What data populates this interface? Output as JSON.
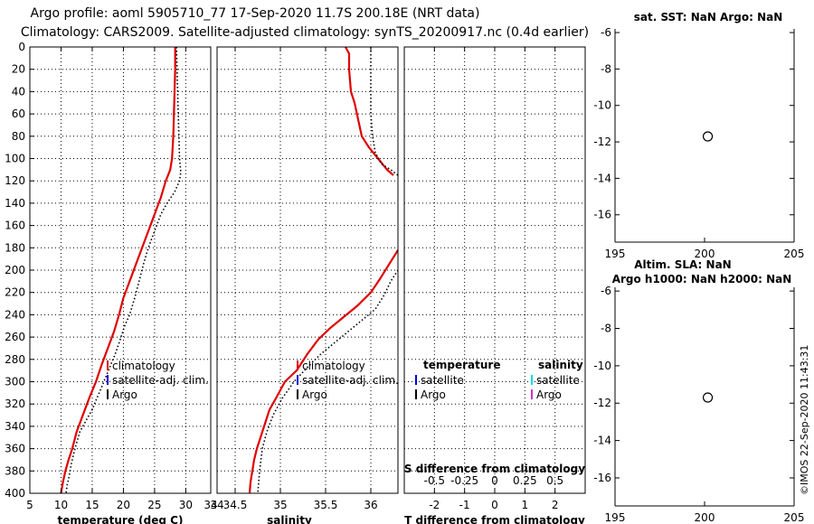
{
  "title_line1": "Argo profile: aoml 5905710_77 17-Sep-2020 11.7S 200.18E (NRT data)",
  "title_line2": "Climatology: CARS2009. Satellite-adjusted climatology: synTS_20200917.nc (0.4d earlier)",
  "credit": "©IMOS 22-Sep-2020 11:43:31",
  "colors": {
    "climatology": "#e00000",
    "satellite_adj": "#0000dd",
    "argo": "#000000",
    "satellite_salinity": "#00dddd",
    "argo_salinity": "#cc33cc"
  },
  "chart_data": [
    {
      "type": "line",
      "id": "temperature",
      "xlabel": "temperature (deg C)",
      "ylim": [
        400,
        0
      ],
      "xlim": [
        5,
        34
      ],
      "xticks": [
        5,
        10,
        15,
        20,
        25,
        30,
        34
      ],
      "yticks": [
        0,
        20,
        40,
        60,
        80,
        100,
        120,
        140,
        160,
        180,
        200,
        220,
        240,
        260,
        280,
        300,
        320,
        340,
        360,
        380,
        400
      ],
      "grid": true,
      "legend": [
        "climatology",
        "satellite-adj. clim.",
        "Argo"
      ],
      "series": [
        {
          "name": "climatology",
          "style": "solid",
          "x": [
            28.3,
            28.3,
            28.2,
            28.1,
            28.0,
            27.8,
            27.5,
            26.8,
            26.0,
            25.0,
            24.0,
            23.0,
            22.0,
            21.0,
            20.0,
            19.3,
            18.5,
            17.5,
            16.5,
            15.6,
            14.5,
            13.5,
            12.5,
            11.8,
            11.2,
            10.7,
            10.3,
            10.0
          ],
          "y": [
            0,
            20,
            40,
            60,
            80,
            100,
            110,
            120,
            135,
            150,
            165,
            180,
            195,
            210,
            225,
            240,
            255,
            270,
            285,
            300,
            315,
            330,
            345,
            360,
            370,
            380,
            390,
            400
          ]
        },
        {
          "name": "Argo",
          "style": "dotted",
          "x": [
            28.5,
            28.6,
            28.7,
            28.8,
            28.9,
            29.0,
            29.2,
            29.0,
            28.2,
            27.0,
            26.0,
            25.0,
            24.0,
            23.2,
            22.5,
            21.8,
            21.0,
            20.2,
            19.5,
            18.7,
            17.6,
            16.5,
            15.5,
            15.0,
            14.5,
            13.5,
            13.0,
            12.5,
            12.0,
            11.6,
            11.3,
            11.0,
            10.8
          ],
          "y": [
            0,
            20,
            40,
            60,
            80,
            100,
            112,
            120,
            130,
            140,
            150,
            165,
            180,
            195,
            210,
            225,
            240,
            250,
            262,
            275,
            290,
            305,
            318,
            325,
            330,
            340,
            345,
            355,
            365,
            375,
            385,
            392,
            400
          ]
        }
      ]
    },
    {
      "type": "line",
      "id": "salinity",
      "xlabel": "salinity",
      "ylim": [
        400,
        0
      ],
      "xlim": [
        34.3,
        36.3
      ],
      "xticks": [
        34.5,
        35,
        35.5,
        36
      ],
      "xticklabels": [
        "34.5",
        "35",
        "35.5",
        "36"
      ],
      "grid": true,
      "legend": [
        "climatology",
        "satellite-adj. clim.",
        "Argo"
      ],
      "series": [
        {
          "name": "climatology",
          "style": "solid",
          "x": [
            35.72,
            35.76,
            35.76,
            35.78,
            35.82,
            35.86,
            35.9,
            35.98,
            36.08,
            36.18,
            36.25
          ],
          "y": [
            0,
            6,
            20,
            40,
            50,
            65,
            80,
            90,
            100,
            110,
            115
          ],
          "x2": [
            36.3,
            36.2,
            36.1,
            36.0,
            35.85,
            35.7,
            35.55,
            35.42,
            35.3,
            35.18,
            35.05,
            34.95,
            34.88,
            34.82,
            34.78,
            34.74,
            34.71,
            34.69,
            34.67,
            34.66
          ],
          "y2": [
            182,
            195,
            208,
            220,
            232,
            242,
            252,
            262,
            275,
            290,
            300,
            315,
            325,
            340,
            350,
            360,
            370,
            380,
            390,
            400
          ]
        },
        {
          "name": "Argo",
          "style": "dotted",
          "x": [
            36.0,
            36.0,
            36.0,
            36.0,
            36.02,
            36.05,
            36.12,
            36.22,
            36.3
          ],
          "y": [
            0,
            20,
            40,
            60,
            80,
            95,
            105,
            110,
            115
          ],
          "x2": [
            36.3,
            36.22,
            36.15,
            36.05,
            35.9,
            35.75,
            35.6,
            35.45,
            35.3,
            35.15,
            35.02,
            34.92,
            34.85,
            34.8,
            34.77,
            34.75
          ],
          "y2": [
            200,
            210,
            222,
            235,
            245,
            255,
            265,
            275,
            287,
            300,
            315,
            330,
            345,
            360,
            380,
            400
          ]
        }
      ]
    },
    {
      "type": "line",
      "id": "difference",
      "xlabel": "T difference from climatology",
      "xlabel_top": "S difference from climatology",
      "xlim": [
        -3,
        3
      ],
      "xticks": [
        -2,
        -1,
        0,
        1,
        2
      ],
      "xticks_top": [
        -0.5,
        -0.25,
        0,
        0.25,
        0.5
      ],
      "xticks_top_labels": [
        "-0.5",
        "-0.25",
        "0",
        "0.25",
        "0.5"
      ],
      "grid": true,
      "legend_left_title": "temperature",
      "legend_left": [
        "satellite",
        "Argo"
      ],
      "legend_right_title": "salinity",
      "legend_right": [
        "satellite",
        "Argo"
      ]
    },
    {
      "type": "scatter",
      "id": "sst",
      "title": "sat. SST: NaN Argo: NaN",
      "xlim": [
        195,
        205
      ],
      "ylim": [
        -17.5,
        -5.8
      ],
      "xticks": [
        195,
        200,
        205
      ],
      "yticks": [
        -6,
        -8,
        -10,
        -12,
        -14,
        -16
      ],
      "points": [
        {
          "x": 200.18,
          "y": -11.7
        }
      ]
    },
    {
      "type": "scatter",
      "id": "sla",
      "title": "Altim. SLA: NaN",
      "title2": "Argo h1000: NaN h2000: NaN",
      "xlim": [
        195,
        205
      ],
      "ylim": [
        -17.5,
        -5.8
      ],
      "xticks": [
        195,
        200,
        205
      ],
      "yticks": [
        -6,
        -8,
        -10,
        -12,
        -14,
        -16
      ],
      "points": [
        {
          "x": 200.18,
          "y": -11.7
        }
      ]
    }
  ]
}
